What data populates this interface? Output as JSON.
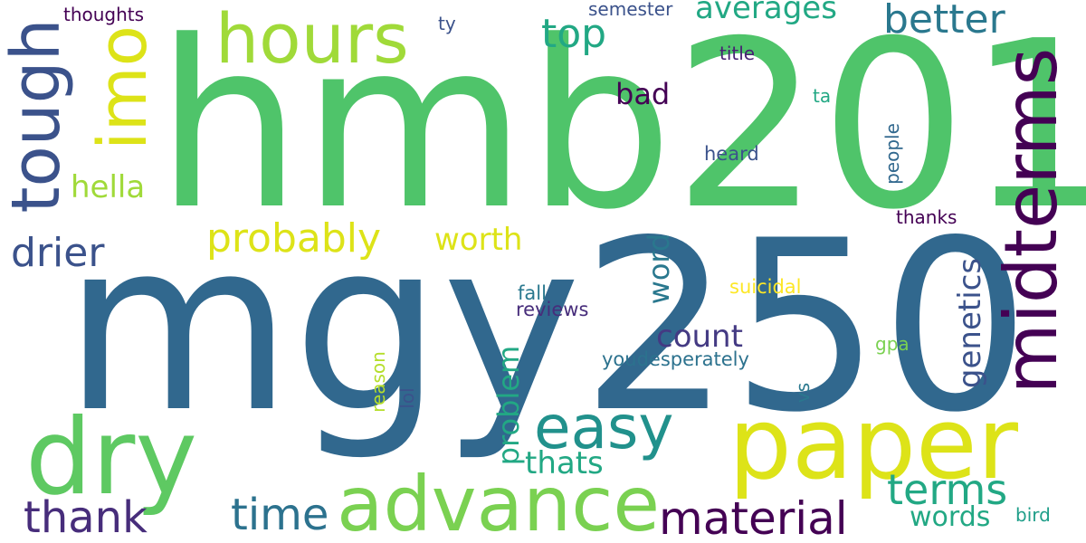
{
  "words": {
    "hmb201": "hmb201",
    "mgy250": "mgy250",
    "paper": "paper",
    "advance": "advance",
    "dry": "dry",
    "hours": "hours",
    "tough": "tough",
    "imo": "imo",
    "midterms": "midterms",
    "easy": "easy",
    "material": "material",
    "thank": "thank",
    "time": "time",
    "terms": "terms",
    "drier": "drier",
    "probably": "probably",
    "better": "better",
    "top": "top",
    "averages": "averages",
    "hella": "hella",
    "worth": "worth",
    "count": "count",
    "thats": "thats",
    "words": "words",
    "bad": "bad",
    "genetics": "genetics",
    "word": "word",
    "problem": "problem",
    "youdesperately": "youdesperately",
    "reviews": "reviews",
    "fall": "fall",
    "suicidal": "suicidal",
    "heard": "heard",
    "thanks": "thanks",
    "thoughts": "thoughts",
    "semester": "semester",
    "title": "title",
    "ty": "ty",
    "ta": "ta",
    "people": "people",
    "gpa": "gpa",
    "reason": "reason",
    "lol": "lol",
    "vs": "vs",
    "bird": "bird"
  },
  "colors": {
    "hmb201": "#4fc46a",
    "mgy250": "#31688e",
    "paper": "#dde318",
    "advance": "#7ad151",
    "dry": "#5ec962",
    "hours": "#a0da39",
    "tough": "#3b528b",
    "imo": "#dde318",
    "midterms": "#440154",
    "easy": "#21918c",
    "material": "#440154",
    "thank": "#472d7b",
    "time": "#2c728e",
    "terms": "#22a884",
    "drier": "#3b528b",
    "probably": "#dde318",
    "better": "#2a788e",
    "top": "#22a884",
    "averages": "#22a884",
    "hella": "#a0da39",
    "worth": "#dde318",
    "count": "#443a83",
    "thats": "#22a884",
    "words": "#22a884",
    "bad": "#440154",
    "genetics": "#3b528b",
    "word": "#2a788e",
    "problem": "#22a884",
    "youdesperately": "#2c728e",
    "reviews": "#472d7b",
    "fall": "#2a788e",
    "suicidal": "#fde725",
    "heard": "#3b528b",
    "thanks": "#440154",
    "thoughts": "#440154",
    "semester": "#3b528b",
    "title": "#482173",
    "ty": "#3b528b",
    "ta": "#22a884",
    "people": "#31688e",
    "gpa": "#7ad151",
    "reason": "#b5de2b",
    "lol": "#3b528b",
    "vs": "#2a788e",
    "bird": "#1f9e89"
  }
}
